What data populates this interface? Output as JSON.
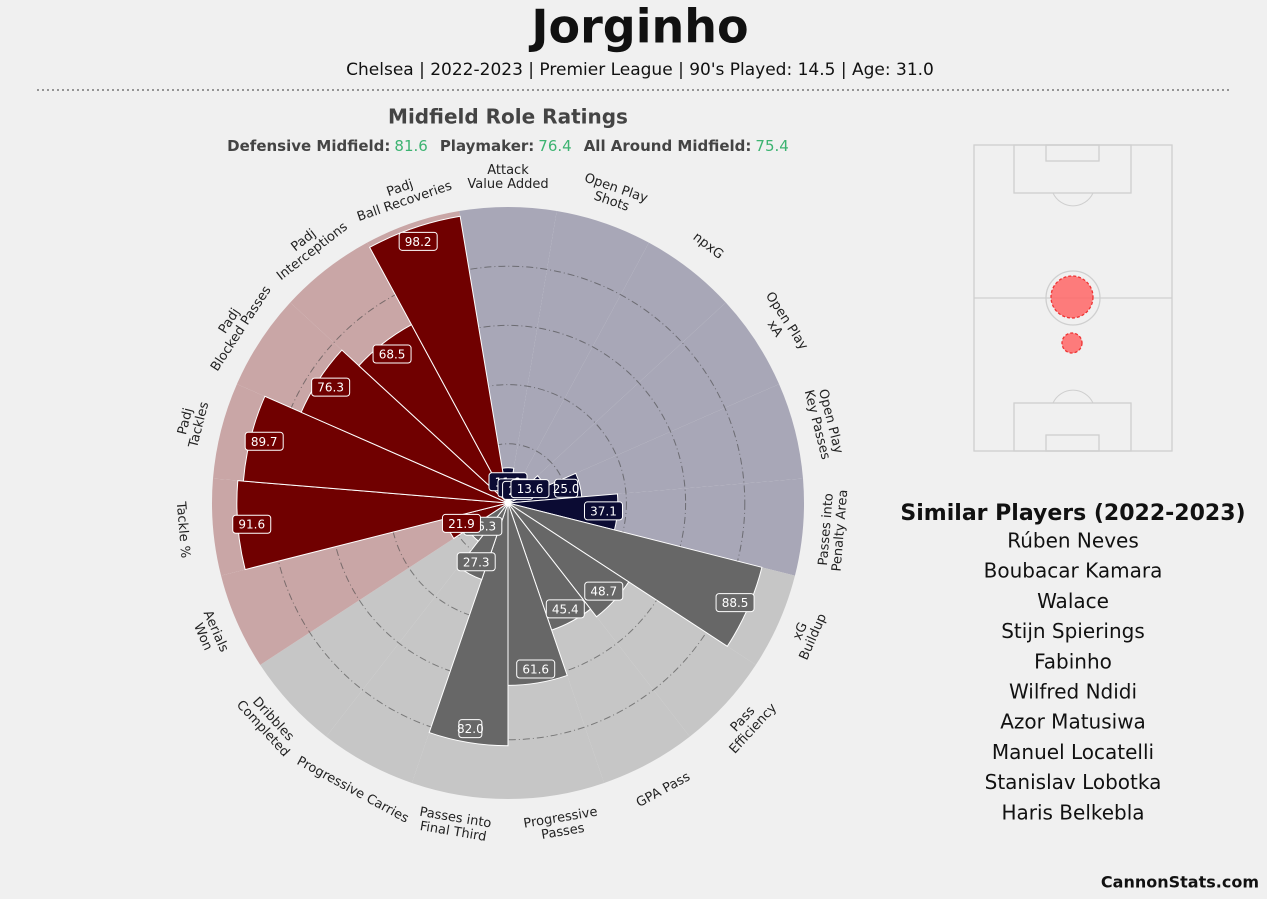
{
  "header": {
    "title": "Jorginho",
    "subtitle": "Chelsea | 2022-2023 | Premier League | 90's Played: 14.5 | Age: 31.0"
  },
  "chart_data": {
    "type": "pizza",
    "title": "Midfield Role Ratings",
    "categories": [
      "Attack\nValue Added",
      "Open Play\nShots",
      "npxG",
      "Open Play\nxA",
      "Open Play\nKey Passes",
      "Passes into\nPenalty Area",
      "xG\nBuildup",
      "Pass\nEfficiency",
      "GPA Pass",
      "Progressive\nPasses",
      "Passes into\nFinal Third",
      "Progressive Carries",
      "Dribbles\nCompleted",
      "Aerials\nWon",
      "Tackle %",
      "Padj\nTackles",
      "Padj\nBlocked Passes",
      "Padj\nInterceptions",
      "Padj\nBall Recoveries"
    ],
    "values": [
      11.9,
      7.1,
      2.4,
      13.6,
      25.0,
      37.1,
      88.5,
      48.7,
      45.4,
      61.6,
      82.0,
      27.3,
      16.3,
      21.9,
      91.6,
      89.7,
      76.3,
      68.5,
      98.2
    ],
    "bar_colors": [
      "#0b0b33",
      "#0b0b33",
      "#0b0b33",
      "#0b0b33",
      "#0b0b33",
      "#0b0b33",
      "#676767",
      "#676767",
      "#676767",
      "#676767",
      "#676767",
      "#676767",
      "#676767",
      "#700000",
      "#700000",
      "#700000",
      "#700000",
      "#700000",
      "#700000"
    ],
    "slice_colors": [
      "#a8a7b7",
      "#a8a7b7",
      "#a8a7b7",
      "#a8a7b7",
      "#a8a7b7",
      "#a8a7b7",
      "#c6c6c6",
      "#c6c6c6",
      "#c6c6c6",
      "#c6c6c6",
      "#c6c6c6",
      "#c6c6c6",
      "#c6c6c6",
      "#c9a6a6",
      "#c9a6a6",
      "#c9a6a6",
      "#c9a6a6",
      "#c9a6a6",
      "#c9a6a6"
    ],
    "rlim": [
      0,
      100
    ],
    "rticks": [
      20,
      40,
      60,
      80
    ],
    "grid": true
  },
  "ratings": [
    {
      "label": "Defensive Midfield:",
      "value": "81.6"
    },
    {
      "label": "Playmaker:",
      "value": "76.4"
    },
    {
      "label": "All Around Midfield:",
      "value": "75.4"
    }
  ],
  "similar_players": {
    "title": "Similar Players (2022-2023)",
    "names": [
      "Rúben Neves",
      "Boubacar Kamara",
      "Walace",
      "Stijn Spierings",
      "Fabinho",
      "Wilfred Ndidi",
      "Azor Matusiwa",
      "Manuel Locatelli",
      "Stanislav Lobotka",
      "Haris Belkebla"
    ]
  },
  "footer": "CannonStats.com"
}
